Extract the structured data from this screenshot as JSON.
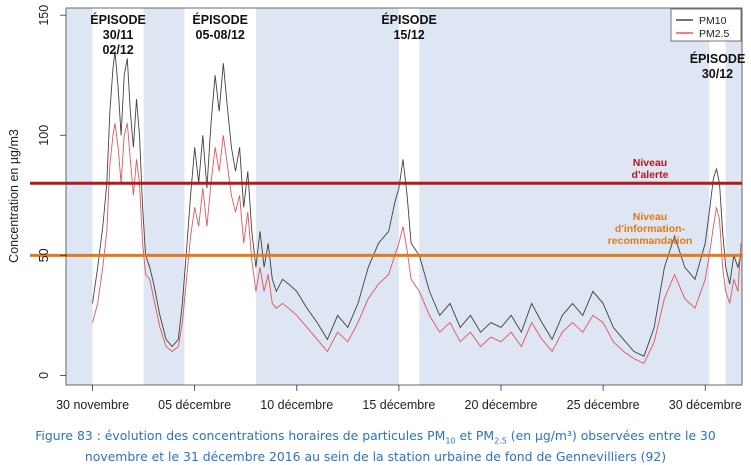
{
  "caption": {
    "part1": "Figure 83 : évolution des concentrations horaires de particules PM",
    "sub1": "10",
    "part2": " et PM",
    "sub2": "2.5",
    "part3": " (en µg/m³) observées entre le 30",
    "line2": "novembre et le 31 décembre 2016 au sein de la station urbaine de fond de Gennevilliers (92)"
  },
  "chart_data": {
    "type": "line",
    "title": "",
    "xlabel": "",
    "ylabel": "Concentration en µg/m3",
    "x_unit": "days since 30 novembre 2016",
    "xlim": [
      -1.3,
      31.8
    ],
    "ylim": [
      -4,
      153
    ],
    "y_ticks": [
      0,
      50,
      100,
      150
    ],
    "x_ticks": [
      {
        "x": 0,
        "label": "30 novembre"
      },
      {
        "x": 5,
        "label": "05 décembre"
      },
      {
        "x": 10,
        "label": "10 décembre"
      },
      {
        "x": 15,
        "label": "15 décembre"
      },
      {
        "x": 20,
        "label": "20 décembre"
      },
      {
        "x": 25,
        "label": "25 décembre"
      },
      {
        "x": 30,
        "label": "30 décembre"
      }
    ],
    "background_color": "#dde6f2",
    "episodes": [
      {
        "from": 0,
        "to": 2.5,
        "label_lines": [
          "ÉPISODE",
          "30/11",
          "02/12"
        ]
      },
      {
        "from": 4.5,
        "to": 8,
        "label_lines": [
          "ÉPISODE",
          "05-08/12"
        ]
      },
      {
        "from": 15,
        "to": 16,
        "label_lines": [
          "ÉPISODE",
          "15/12"
        ]
      },
      {
        "from": 30.2,
        "to": 31,
        "label_lines": [
          "ÉPISODE",
          "30/12"
        ]
      }
    ],
    "thresholds": [
      {
        "value": 80,
        "color": "#b01a1a",
        "label_lines": [
          "Niveau",
          "d'alerte"
        ]
      },
      {
        "value": 50,
        "color": "#e07b1a",
        "label_lines": [
          "Niveau",
          "d'information-",
          "recommandation"
        ]
      }
    ],
    "legend": {
      "position": "top-right",
      "entries": [
        {
          "name": "PM10",
          "color": "#222222"
        },
        {
          "name": "PM2.5",
          "color": "#e03a3a"
        }
      ]
    },
    "series": [
      {
        "name": "PM10",
        "color": "#222222",
        "points": [
          [
            0,
            30
          ],
          [
            0.25,
            45
          ],
          [
            0.5,
            62
          ],
          [
            0.7,
            80
          ],
          [
            0.85,
            110
          ],
          [
            1,
            128
          ],
          [
            1.1,
            135
          ],
          [
            1.25,
            120
          ],
          [
            1.4,
            100
          ],
          [
            1.55,
            125
          ],
          [
            1.7,
            132
          ],
          [
            1.85,
            110
          ],
          [
            2,
            95
          ],
          [
            2.15,
            115
          ],
          [
            2.3,
            100
          ],
          [
            2.45,
            70
          ],
          [
            2.6,
            50
          ],
          [
            2.8,
            45
          ],
          [
            3,
            38
          ],
          [
            3.3,
            25
          ],
          [
            3.6,
            15
          ],
          [
            3.9,
            12
          ],
          [
            4.2,
            15
          ],
          [
            4.4,
            30
          ],
          [
            4.6,
            52
          ],
          [
            4.8,
            75
          ],
          [
            5,
            95
          ],
          [
            5.2,
            80
          ],
          [
            5.4,
            100
          ],
          [
            5.6,
            78
          ],
          [
            5.8,
            105
          ],
          [
            6,
            125
          ],
          [
            6.2,
            110
          ],
          [
            6.4,
            130
          ],
          [
            6.6,
            112
          ],
          [
            6.8,
            95
          ],
          [
            7,
            85
          ],
          [
            7.2,
            95
          ],
          [
            7.4,
            70
          ],
          [
            7.6,
            85
          ],
          [
            7.8,
            60
          ],
          [
            8,
            45
          ],
          [
            8.2,
            60
          ],
          [
            8.4,
            45
          ],
          [
            8.6,
            55
          ],
          [
            8.8,
            40
          ],
          [
            9,
            35
          ],
          [
            9.3,
            40
          ],
          [
            9.6,
            38
          ],
          [
            10,
            35
          ],
          [
            10.5,
            28
          ],
          [
            11,
            22
          ],
          [
            11.5,
            15
          ],
          [
            12,
            25
          ],
          [
            12.5,
            20
          ],
          [
            13,
            30
          ],
          [
            13.5,
            45
          ],
          [
            14,
            55
          ],
          [
            14.5,
            60
          ],
          [
            14.8,
            72
          ],
          [
            15,
            78
          ],
          [
            15.2,
            90
          ],
          [
            15.4,
            75
          ],
          [
            15.6,
            55
          ],
          [
            16,
            50
          ],
          [
            16.5,
            35
          ],
          [
            17,
            25
          ],
          [
            17.5,
            30
          ],
          [
            18,
            20
          ],
          [
            18.5,
            25
          ],
          [
            19,
            18
          ],
          [
            19.5,
            22
          ],
          [
            20,
            20
          ],
          [
            20.5,
            25
          ],
          [
            21,
            18
          ],
          [
            21.5,
            30
          ],
          [
            22,
            22
          ],
          [
            22.5,
            15
          ],
          [
            23,
            25
          ],
          [
            23.5,
            30
          ],
          [
            24,
            25
          ],
          [
            24.5,
            35
          ],
          [
            25,
            30
          ],
          [
            25.5,
            20
          ],
          [
            26,
            15
          ],
          [
            26.5,
            10
          ],
          [
            27,
            8
          ],
          [
            27.5,
            20
          ],
          [
            28,
            45
          ],
          [
            28.5,
            58
          ],
          [
            29,
            45
          ],
          [
            29.5,
            40
          ],
          [
            30,
            55
          ],
          [
            30.2,
            68
          ],
          [
            30.4,
            82
          ],
          [
            30.55,
            86
          ],
          [
            30.7,
            80
          ],
          [
            30.85,
            60
          ],
          [
            31,
            45
          ],
          [
            31.2,
            38
          ],
          [
            31.4,
            50
          ],
          [
            31.6,
            45
          ],
          [
            31.75,
            50
          ]
        ]
      },
      {
        "name": "PM2.5",
        "color": "#e03a3a",
        "points": [
          [
            0,
            22
          ],
          [
            0.25,
            30
          ],
          [
            0.5,
            45
          ],
          [
            0.7,
            60
          ],
          [
            0.85,
            88
          ],
          [
            1,
            100
          ],
          [
            1.1,
            105
          ],
          [
            1.25,
            95
          ],
          [
            1.4,
            80
          ],
          [
            1.55,
            100
          ],
          [
            1.7,
            105
          ],
          [
            1.85,
            90
          ],
          [
            2,
            75
          ],
          [
            2.15,
            90
          ],
          [
            2.3,
            80
          ],
          [
            2.45,
            55
          ],
          [
            2.6,
            42
          ],
          [
            2.8,
            40
          ],
          [
            3,
            32
          ],
          [
            3.3,
            20
          ],
          [
            3.6,
            12
          ],
          [
            3.9,
            10
          ],
          [
            4.2,
            12
          ],
          [
            4.4,
            22
          ],
          [
            4.6,
            40
          ],
          [
            4.8,
            58
          ],
          [
            5,
            70
          ],
          [
            5.2,
            62
          ],
          [
            5.4,
            78
          ],
          [
            5.6,
            62
          ],
          [
            5.8,
            80
          ],
          [
            6,
            95
          ],
          [
            6.2,
            85
          ],
          [
            6.4,
            100
          ],
          [
            6.6,
            88
          ],
          [
            6.8,
            75
          ],
          [
            7,
            68
          ],
          [
            7.2,
            75
          ],
          [
            7.4,
            55
          ],
          [
            7.6,
            68
          ],
          [
            7.8,
            48
          ],
          [
            8,
            35
          ],
          [
            8.2,
            45
          ],
          [
            8.4,
            35
          ],
          [
            8.6,
            42
          ],
          [
            8.8,
            30
          ],
          [
            9,
            28
          ],
          [
            9.3,
            30
          ],
          [
            9.6,
            28
          ],
          [
            10,
            25
          ],
          [
            10.5,
            20
          ],
          [
            11,
            15
          ],
          [
            11.5,
            10
          ],
          [
            12,
            18
          ],
          [
            12.5,
            14
          ],
          [
            13,
            22
          ],
          [
            13.5,
            32
          ],
          [
            14,
            38
          ],
          [
            14.5,
            42
          ],
          [
            14.8,
            50
          ],
          [
            15,
            55
          ],
          [
            15.2,
            62
          ],
          [
            15.4,
            52
          ],
          [
            15.6,
            40
          ],
          [
            16,
            35
          ],
          [
            16.5,
            25
          ],
          [
            17,
            18
          ],
          [
            17.5,
            22
          ],
          [
            18,
            14
          ],
          [
            18.5,
            18
          ],
          [
            19,
            12
          ],
          [
            19.5,
            16
          ],
          [
            20,
            14
          ],
          [
            20.5,
            18
          ],
          [
            21,
            12
          ],
          [
            21.5,
            22
          ],
          [
            22,
            15
          ],
          [
            22.5,
            10
          ],
          [
            23,
            18
          ],
          [
            23.5,
            22
          ],
          [
            24,
            18
          ],
          [
            24.5,
            25
          ],
          [
            25,
            22
          ],
          [
            25.5,
            14
          ],
          [
            26,
            10
          ],
          [
            26.5,
            7
          ],
          [
            27,
            5
          ],
          [
            27.5,
            14
          ],
          [
            28,
            32
          ],
          [
            28.5,
            42
          ],
          [
            29,
            32
          ],
          [
            29.5,
            28
          ],
          [
            30,
            40
          ],
          [
            30.2,
            50
          ],
          [
            30.4,
            62
          ],
          [
            30.55,
            70
          ],
          [
            30.7,
            65
          ],
          [
            30.85,
            45
          ],
          [
            31,
            35
          ],
          [
            31.2,
            30
          ],
          [
            31.4,
            40
          ],
          [
            31.6,
            35
          ],
          [
            31.75,
            55
          ]
        ]
      }
    ]
  }
}
